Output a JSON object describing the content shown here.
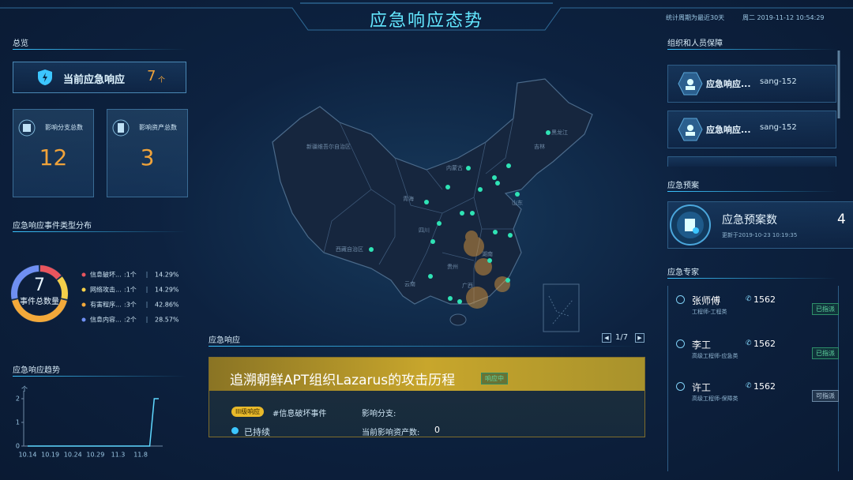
{
  "header": {
    "title": "应急响应态势",
    "period": "统计周期为最近30天",
    "datetime": "周二 2019-11-12 10:54:29"
  },
  "overview": {
    "title": "总览",
    "current_label": "当前应急响应",
    "current_value": 7,
    "current_unit": "个",
    "cards": [
      {
        "label": "影响分支总数",
        "value": 12
      },
      {
        "label": "影响资产总数",
        "value": 3
      }
    ]
  },
  "event_types": {
    "title": "应急响应事件类型分布",
    "total": 7,
    "total_label": "事件总数量",
    "names": [
      "信息破坏...",
      "网络攻击...",
      "有害程序...",
      "信息内容..."
    ],
    "values": [
      1,
      1,
      3,
      2
    ],
    "value_labels": [
      ":1个",
      ":1个",
      ":3个",
      ":2个"
    ],
    "percents": [
      "14.29%",
      "14.29%",
      "42.86%",
      "28.57%"
    ],
    "colors": [
      "#e8555e",
      "#f5d04a",
      "#f3a93a",
      "#6f8ff2"
    ]
  },
  "trend": {
    "title": "应急响应趋势",
    "y_label": "个",
    "categories": [
      "10.14",
      null,
      null,
      null,
      null,
      "10.19",
      null,
      null,
      null,
      null,
      "10.24",
      null,
      null,
      null,
      null,
      "10.29",
      null,
      null,
      null,
      null,
      "11.3",
      null,
      null,
      null,
      null,
      "11.8",
      null,
      null,
      null,
      null
    ],
    "values": [
      0,
      0,
      0,
      0,
      0,
      0,
      0,
      0,
      0,
      0,
      0,
      0,
      0,
      0,
      0,
      0,
      0,
      0,
      0,
      0,
      0,
      0,
      0,
      0,
      0,
      0,
      0,
      0,
      2,
      2
    ],
    "color": "#5fd8ff",
    "ylim": [
      0,
      2
    ],
    "yticks": [
      0,
      1,
      2
    ]
  },
  "map": {
    "labels": [
      "新疆维吾尔自治区",
      "西藏自治区",
      "青海",
      "内蒙古",
      "黑龙江",
      "吉林",
      "四川",
      "贵州",
      "云南",
      "广西",
      "湖南",
      "山东"
    ]
  },
  "response": {
    "title": "应急响应",
    "page": "1/7",
    "event": {
      "title": "追溯朝鲜APT组织Lazarus的攻击历程",
      "status": "响应中",
      "level": "III级响应",
      "tag": "#信息破坏事件",
      "branch_label": "影响分支:",
      "duration": "已持续",
      "assets_label": "当前影响资产数:",
      "assets": 0
    }
  },
  "org": {
    "title": "组织和人员保障",
    "items": [
      {
        "name": "应急响应...",
        "code": "sang-152"
      },
      {
        "name": "应急响应...",
        "code": "sang-152"
      }
    ]
  },
  "plan": {
    "title": "应急预案",
    "label": "应急预案数",
    "count": 4,
    "updated": "更新于2019-10-23 10:19:35"
  },
  "experts": {
    "title": "应急专家",
    "items": [
      {
        "name": "张师傅",
        "phone": "1562",
        "role": "工程师-工程类",
        "status": "已指派"
      },
      {
        "name": "李工",
        "phone": "1562",
        "role": "高级工程师-应急类",
        "status": "已指派"
      },
      {
        "name": "许工",
        "phone": "1562",
        "role": "高级工程师-保障类",
        "status": "可指派"
      }
    ]
  }
}
